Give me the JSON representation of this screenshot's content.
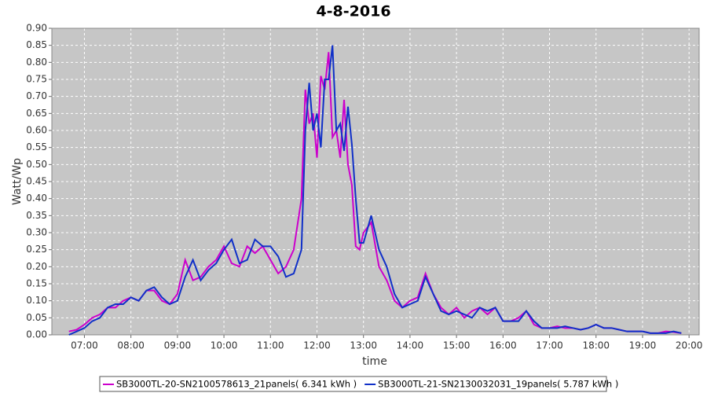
{
  "chart_data": {
    "type": "line",
    "title": "4-8-2016",
    "x_label": "time",
    "y_label": "Watt/Wp",
    "x": [
      "06:40",
      "06:50",
      "07:00",
      "07:10",
      "07:20",
      "07:30",
      "07:40",
      "07:50",
      "08:00",
      "08:10",
      "08:20",
      "08:30",
      "08:40",
      "08:50",
      "09:00",
      "09:10",
      "09:20",
      "09:30",
      "09:40",
      "09:50",
      "10:00",
      "10:10",
      "10:20",
      "10:30",
      "10:40",
      "10:50",
      "11:00",
      "11:10",
      "11:20",
      "11:30",
      "11:40",
      "11:45",
      "11:50",
      "11:55",
      "12:00",
      "12:05",
      "12:10",
      "12:15",
      "12:20",
      "12:25",
      "12:30",
      "12:35",
      "12:40",
      "12:45",
      "12:50",
      "12:55",
      "13:00",
      "13:10",
      "13:20",
      "13:30",
      "13:40",
      "13:50",
      "14:00",
      "14:10",
      "14:20",
      "14:30",
      "14:40",
      "14:50",
      "15:00",
      "15:10",
      "15:20",
      "15:30",
      "15:40",
      "15:50",
      "16:00",
      "16:10",
      "16:20",
      "16:30",
      "16:40",
      "16:50",
      "17:00",
      "17:10",
      "17:20",
      "17:30",
      "17:40",
      "17:50",
      "18:00",
      "18:10",
      "18:20",
      "18:30",
      "18:40",
      "18:50",
      "19:00",
      "19:10",
      "19:20",
      "19:30",
      "19:40",
      "19:50"
    ],
    "series": [
      {
        "name": "SB3000TL-20-SN2100578613_21panels( 6.341 kWh )",
        "color": "#cc00cc",
        "values": [
          0.01,
          0.015,
          0.03,
          0.05,
          0.06,
          0.08,
          0.08,
          0.1,
          0.11,
          0.1,
          0.13,
          0.13,
          0.1,
          0.09,
          0.12,
          0.22,
          0.16,
          0.17,
          0.2,
          0.22,
          0.26,
          0.21,
          0.2,
          0.26,
          0.24,
          0.26,
          0.22,
          0.18,
          0.2,
          0.25,
          0.4,
          0.72,
          0.62,
          0.65,
          0.52,
          0.76,
          0.72,
          0.83,
          0.58,
          0.6,
          0.52,
          0.69,
          0.5,
          0.44,
          0.26,
          0.25,
          0.3,
          0.33,
          0.2,
          0.16,
          0.1,
          0.08,
          0.1,
          0.11,
          0.18,
          0.12,
          0.08,
          0.06,
          0.08,
          0.05,
          0.07,
          0.08,
          0.06,
          0.08,
          0.04,
          0.04,
          0.05,
          0.07,
          0.03,
          0.02,
          0.02,
          0.025,
          0.02,
          0.02,
          0.015,
          0.02,
          0.03,
          0.02,
          0.02,
          0.015,
          0.01,
          0.01,
          0.01,
          0.005,
          0.005,
          0.01,
          0.008,
          0.005
        ]
      },
      {
        "name": "SB3000TL-21-SN2130032031_19panels( 5.787 kWh )",
        "color": "#1030c8",
        "values": [
          0,
          0.01,
          0.02,
          0.04,
          0.05,
          0.08,
          0.09,
          0.09,
          0.11,
          0.1,
          0.13,
          0.14,
          0.11,
          0.09,
          0.1,
          0.17,
          0.22,
          0.16,
          0.19,
          0.21,
          0.25,
          0.28,
          0.21,
          0.22,
          0.28,
          0.26,
          0.26,
          0.23,
          0.17,
          0.18,
          0.25,
          0.6,
          0.74,
          0.6,
          0.65,
          0.55,
          0.75,
          0.75,
          0.85,
          0.6,
          0.62,
          0.54,
          0.67,
          0.56,
          0.4,
          0.27,
          0.27,
          0.35,
          0.25,
          0.2,
          0.12,
          0.08,
          0.09,
          0.1,
          0.17,
          0.12,
          0.07,
          0.06,
          0.07,
          0.06,
          0.05,
          0.08,
          0.07,
          0.08,
          0.04,
          0.04,
          0.04,
          0.07,
          0.04,
          0.02,
          0.02,
          0.02,
          0.025,
          0.02,
          0.015,
          0.02,
          0.03,
          0.02,
          0.02,
          0.015,
          0.01,
          0.01,
          0.01,
          0.005,
          0.005,
          0.005,
          0.01,
          0.005
        ]
      }
    ],
    "xlim": [
      "06:18",
      "20:13"
    ],
    "xticks": [
      "07:00",
      "08:00",
      "09:00",
      "10:00",
      "11:00",
      "12:00",
      "13:00",
      "14:00",
      "15:00",
      "16:00",
      "17:00",
      "18:00",
      "19:00",
      "20:00"
    ],
    "ylim": [
      0,
      0.9
    ],
    "yticks": [
      {
        "value": 0,
        "label": "0.00"
      },
      {
        "value": 0.05,
        "label": "0.05"
      },
      {
        "value": 0.1,
        "label": "0.10"
      },
      {
        "value": 0.15,
        "label": "0.15"
      },
      {
        "value": 0.2,
        "label": "0.20"
      },
      {
        "value": 0.25,
        "label": "0.25"
      },
      {
        "value": 0.3,
        "label": "0.30"
      },
      {
        "value": 0.35,
        "label": "0.35"
      },
      {
        "value": 0.4,
        "label": "0.40"
      },
      {
        "value": 0.45,
        "label": "0.45"
      },
      {
        "value": 0.5,
        "label": "0.50"
      },
      {
        "value": 0.55,
        "label": "0.55"
      },
      {
        "value": 0.6,
        "label": "0.60"
      },
      {
        "value": 0.65,
        "label": "0.65"
      },
      {
        "value": 0.7,
        "label": "0.70"
      },
      {
        "value": 0.75,
        "label": "0.75"
      },
      {
        "value": 0.8,
        "label": "0.80"
      },
      {
        "value": 0.85,
        "label": "0.85"
      },
      {
        "value": 0.9,
        "label": "0.90"
      }
    ],
    "grid": true,
    "legend": "bottom"
  }
}
